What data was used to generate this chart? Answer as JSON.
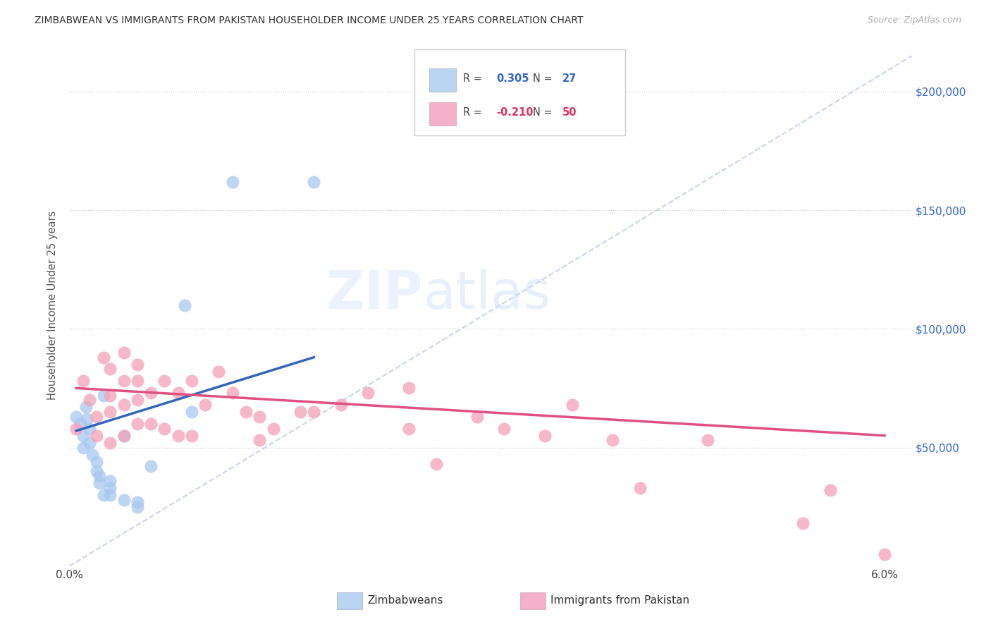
{
  "title": "ZIMBABWEAN VS IMMIGRANTS FROM PAKISTAN HOUSEHOLDER INCOME UNDER 25 YEARS CORRELATION CHART",
  "source": "Source: ZipAtlas.com",
  "ylabel": "Householder Income Under 25 years",
  "xlim": [
    0.0,
    0.062
  ],
  "ylim": [
    0,
    220000
  ],
  "xticks": [
    0.0,
    0.01,
    0.02,
    0.03,
    0.04,
    0.05,
    0.06
  ],
  "xticklabels": [
    "0.0%",
    "",
    "",
    "",
    "",
    "",
    "6.0%"
  ],
  "ytick_positions": [
    0,
    50000,
    100000,
    150000,
    200000
  ],
  "ytick_labels": [
    "",
    "$50,000",
    "$100,000",
    "$150,000",
    "$200,000"
  ],
  "zim_color": "#a8c8f0",
  "pak_color": "#f4a0b8",
  "zim_edge_color": "#7aaad8",
  "pak_edge_color": "#e890b0",
  "zim_line_color": "#3366bb",
  "pak_line_color": "#e05080",
  "trend_line_color": "#b8ccee",
  "watermark_zip": "ZIP",
  "watermark_atlas": "atlas",
  "legend_r_zim": "0.305",
  "legend_n_zim": "27",
  "legend_r_pak": "-0.210",
  "legend_n_pak": "50",
  "legend_zim_color": "#b8d4f0",
  "legend_pak_color": "#f4b0c8",
  "zim_x": [
    0.0005,
    0.0008,
    0.001,
    0.001,
    0.0012,
    0.0013,
    0.0015,
    0.0015,
    0.0017,
    0.002,
    0.002,
    0.0022,
    0.0022,
    0.0025,
    0.0025,
    0.003,
    0.003,
    0.003,
    0.004,
    0.004,
    0.005,
    0.005,
    0.006,
    0.0085,
    0.009,
    0.012,
    0.018
  ],
  "zim_y": [
    63000,
    60000,
    55000,
    50000,
    67000,
    62000,
    58000,
    52000,
    47000,
    44000,
    40000,
    38000,
    35000,
    72000,
    30000,
    36000,
    33000,
    30000,
    55000,
    28000,
    27000,
    25000,
    42000,
    110000,
    65000,
    162000,
    162000
  ],
  "pak_x": [
    0.0005,
    0.001,
    0.0015,
    0.002,
    0.002,
    0.0025,
    0.003,
    0.003,
    0.003,
    0.003,
    0.004,
    0.004,
    0.004,
    0.004,
    0.005,
    0.005,
    0.005,
    0.005,
    0.006,
    0.006,
    0.007,
    0.007,
    0.008,
    0.008,
    0.009,
    0.009,
    0.01,
    0.011,
    0.012,
    0.013,
    0.014,
    0.014,
    0.015,
    0.017,
    0.018,
    0.02,
    0.022,
    0.025,
    0.025,
    0.027,
    0.03,
    0.032,
    0.035,
    0.037,
    0.04,
    0.042,
    0.047,
    0.054,
    0.056,
    0.06
  ],
  "pak_y": [
    58000,
    78000,
    70000,
    63000,
    55000,
    88000,
    83000,
    72000,
    65000,
    52000,
    90000,
    78000,
    68000,
    55000,
    85000,
    78000,
    70000,
    60000,
    73000,
    60000,
    78000,
    58000,
    73000,
    55000,
    78000,
    55000,
    68000,
    82000,
    73000,
    65000,
    63000,
    53000,
    58000,
    65000,
    65000,
    68000,
    73000,
    75000,
    58000,
    43000,
    63000,
    58000,
    55000,
    68000,
    53000,
    33000,
    53000,
    18000,
    32000,
    5000
  ],
  "zim_trendline_x": [
    0.0005,
    0.018
  ],
  "zim_trendline_y": [
    57000,
    88000
  ],
  "pak_trendline_x": [
    0.0005,
    0.06
  ],
  "pak_trendline_y": [
    75000,
    55000
  ],
  "dash_line_x": [
    0.0,
    0.062
  ],
  "dash_line_y": [
    0,
    215000
  ]
}
